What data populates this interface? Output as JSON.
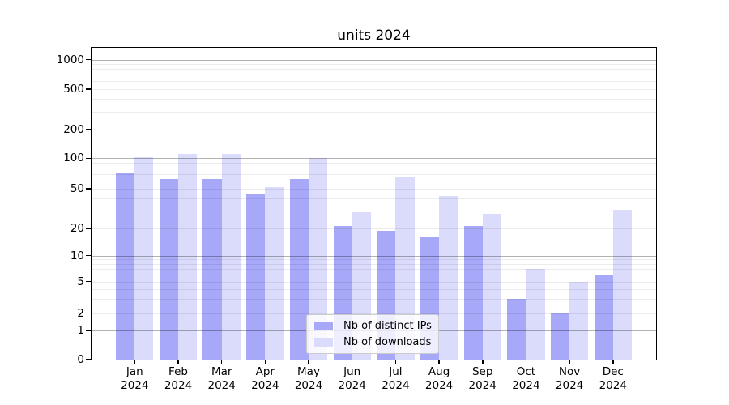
{
  "title": "units 2024",
  "chart_data": {
    "type": "bar",
    "title": "units 2024",
    "xlabel": "",
    "ylabel": "",
    "yscale": "symlog",
    "grid": true,
    "legend_position": "lower center",
    "ylim": [
      0,
      1300
    ],
    "yticks": [
      0,
      1,
      2,
      5,
      10,
      20,
      50,
      100,
      200,
      500,
      1000
    ],
    "categories": [
      "Jan 2024",
      "Feb 2024",
      "Mar 2024",
      "Apr 2024",
      "May 2024",
      "Jun 2024",
      "Jul 2024",
      "Aug 2024",
      "Sep 2024",
      "Oct 2024",
      "Nov 2024",
      "Dec 2024"
    ],
    "series": [
      {
        "name": "Nb of distinct IPs",
        "color": "#a8a8f8",
        "values": [
          71,
          62,
          62,
          45,
          62,
          21,
          19,
          16,
          21,
          3,
          2,
          6
        ]
      },
      {
        "name": "Nb of downloads",
        "color": "#dbdbfb",
        "values": [
          102,
          110,
          112,
          52,
          100,
          29,
          65,
          42,
          28,
          7,
          5,
          31
        ]
      }
    ]
  }
}
